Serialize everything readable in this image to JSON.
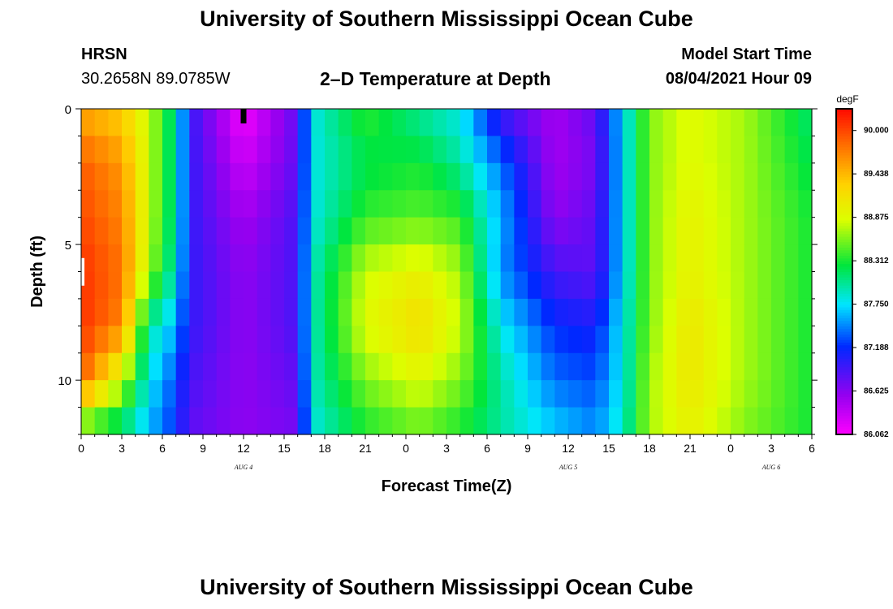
{
  "page": {
    "title_top": "University of Southern Mississippi Ocean Cube",
    "title_bottom": "University of Southern Mississippi Ocean Cube",
    "station": "HRSN",
    "coordinates": "30.2658N  89.0785W",
    "subtitle": "2–D Temperature at Depth",
    "model_start_label": "Model Start Time",
    "model_start_value": "08/04/2021 Hour 09"
  },
  "chart_data": {
    "type": "heatmap",
    "title": "2–D Temperature at Depth",
    "xlabel": "Forecast Time(Z)",
    "ylabel": "Depth (ft)",
    "x_range_hours": [
      0,
      54
    ],
    "y_range_ft": [
      0,
      12
    ],
    "x_ticks": [
      {
        "hour": 0,
        "label": "0"
      },
      {
        "hour": 3,
        "label": "3"
      },
      {
        "hour": 6,
        "label": "6"
      },
      {
        "hour": 9,
        "label": "9"
      },
      {
        "hour": 12,
        "label": "12"
      },
      {
        "hour": 15,
        "label": "15"
      },
      {
        "hour": 18,
        "label": "18"
      },
      {
        "hour": 21,
        "label": "21"
      },
      {
        "hour": 24,
        "label": "0"
      },
      {
        "hour": 27,
        "label": "3"
      },
      {
        "hour": 30,
        "label": "6"
      },
      {
        "hour": 33,
        "label": "9"
      },
      {
        "hour": 36,
        "label": "12"
      },
      {
        "hour": 39,
        "label": "15"
      },
      {
        "hour": 42,
        "label": "18"
      },
      {
        "hour": 45,
        "label": "21"
      },
      {
        "hour": 48,
        "label": "0"
      },
      {
        "hour": 51,
        "label": "3"
      },
      {
        "hour": 54,
        "label": "6"
      }
    ],
    "y_ticks": [
      {
        "depth": 0,
        "label": "0"
      },
      {
        "depth": 5,
        "label": "5"
      },
      {
        "depth": 10,
        "label": "10"
      }
    ],
    "date_labels": [
      {
        "hour": 12,
        "label": "AUG 4"
      },
      {
        "hour": 36,
        "label": "AUG 5"
      },
      {
        "hour": 51,
        "label": "AUG 6"
      }
    ],
    "current_time_marker_hour": 12,
    "colorbar": {
      "unit": "degF",
      "min": 86.062,
      "max": 90.281,
      "tick_labels": [
        "90.000",
        "89.438",
        "88.875",
        "88.312",
        "87.750",
        "87.188",
        "86.625",
        "86.062"
      ]
    },
    "depths_ft": [
      0,
      2,
      4,
      6,
      8,
      10,
      12
    ],
    "keyframe_hours": [
      0,
      3,
      5,
      7,
      8,
      12,
      16,
      17,
      21,
      25,
      28,
      31,
      35,
      38,
      40,
      42,
      45,
      49,
      54
    ],
    "temperature_degF": [
      [
        89.5,
        89.3,
        88.8,
        88.0,
        87.0,
        86.1,
        86.8,
        87.8,
        88.4,
        88.0,
        87.8,
        86.9,
        86.5,
        86.8,
        87.7,
        88.6,
        88.9,
        88.7,
        88.1
      ],
      [
        89.9,
        89.6,
        88.8,
        88.0,
        87.0,
        86.3,
        86.8,
        87.8,
        88.2,
        88.3,
        88.0,
        87.4,
        86.5,
        86.7,
        87.7,
        88.6,
        88.9,
        88.7,
        88.2
      ],
      [
        90.0,
        89.7,
        88.8,
        88.0,
        87.0,
        86.5,
        86.9,
        87.8,
        88.4,
        88.5,
        88.4,
        87.6,
        86.6,
        86.8,
        87.7,
        88.6,
        89.0,
        88.7,
        88.3
      ],
      [
        90.1,
        89.8,
        88.7,
        87.9,
        87.0,
        86.6,
        86.9,
        87.9,
        88.8,
        89.0,
        88.7,
        87.5,
        86.9,
        86.8,
        87.7,
        88.6,
        89.0,
        88.7,
        88.3
      ],
      [
        90.1,
        89.7,
        88.0,
        87.6,
        87.0,
        86.6,
        86.9,
        87.9,
        88.9,
        89.2,
        88.8,
        87.8,
        87.2,
        87.1,
        87.8,
        88.6,
        89.1,
        88.7,
        88.3
      ],
      [
        89.9,
        88.8,
        87.8,
        87.3,
        86.9,
        86.6,
        86.8,
        87.9,
        88.6,
        88.9,
        88.6,
        88.0,
        87.4,
        87.3,
        87.8,
        88.7,
        89.1,
        88.7,
        88.3
      ],
      [
        88.3,
        88.0,
        87.6,
        87.2,
        86.8,
        86.6,
        86.7,
        87.8,
        88.3,
        88.5,
        88.3,
        88.0,
        87.7,
        87.5,
        87.9,
        88.7,
        89.0,
        88.6,
        88.3
      ]
    ]
  }
}
